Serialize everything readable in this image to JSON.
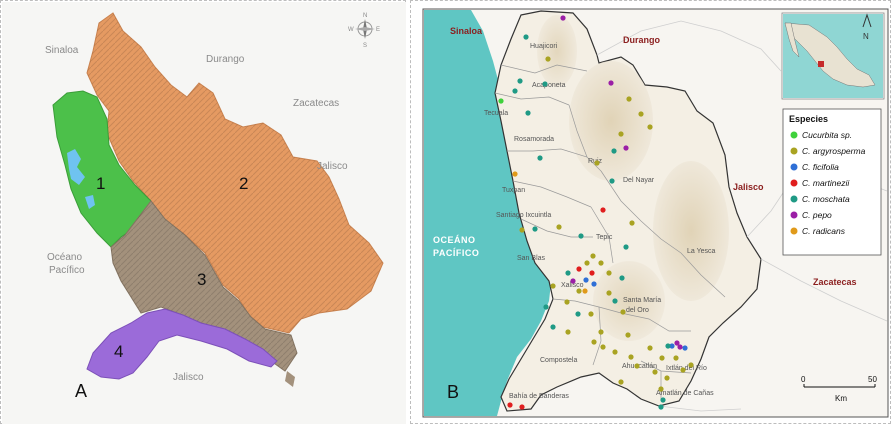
{
  "panelA": {
    "letter": "A",
    "labels": {
      "sinaloa": "Sinaloa",
      "durango": "Durango",
      "zacatecas": "Zacatecas",
      "jalisco_east": "Jalisco",
      "oceano_1": "Océano",
      "oceano_2": "Pacífico",
      "jalisco_south": "Jalisco"
    },
    "regions": [
      {
        "id": "1",
        "label": "1",
        "color": "#4cc04a"
      },
      {
        "id": "2",
        "label": "2",
        "color": "#e59a62"
      },
      {
        "id": "3",
        "label": "3",
        "color": "#a3917c"
      },
      {
        "id": "4",
        "label": "4",
        "color": "#9b6bd9"
      }
    ],
    "compass": {
      "n": "N",
      "s": "S",
      "e": "E",
      "w": "W"
    }
  },
  "panelB": {
    "letter": "B",
    "states": {
      "sinaloa": "Sinaloa",
      "durango": "Durango",
      "jalisco": "Jalisco",
      "zacatecas": "Zacatecas"
    },
    "ocean_1": "OCEÁNO",
    "ocean_2": "PACÍFICO",
    "municipalities": [
      {
        "id": "huajicori",
        "name": "Huajicori"
      },
      {
        "id": "acaponeta",
        "name": "Acaponeta"
      },
      {
        "id": "tecuala",
        "name": "Tecuala"
      },
      {
        "id": "rosamorada",
        "name": "Rosamorada"
      },
      {
        "id": "ruiz",
        "name": "Ruiz"
      },
      {
        "id": "delnayar",
        "name": "Del Nayar"
      },
      {
        "id": "tuxpan",
        "name": "Tuxpan"
      },
      {
        "id": "santiago",
        "name": "Santiago Ixcuintla"
      },
      {
        "id": "tepic",
        "name": "Tepic"
      },
      {
        "id": "sanblas",
        "name": "San Blas"
      },
      {
        "id": "xalisco",
        "name": "Xalisco"
      },
      {
        "id": "layesca",
        "name": "La Yesca"
      },
      {
        "id": "santamaria1",
        "name": "Santa María"
      },
      {
        "id": "santamaria2",
        "name": "del Oro"
      },
      {
        "id": "compostela",
        "name": "Compostela"
      },
      {
        "id": "ahuacatlan",
        "name": "Ahuacatlán"
      },
      {
        "id": "ixtlan",
        "name": "Ixtlán del Río"
      },
      {
        "id": "bahia",
        "name": "Bahía de Banderas"
      },
      {
        "id": "amatlan",
        "name": "Amatlán de Cañas"
      }
    ],
    "inset_north": "N",
    "legend": {
      "title": "Especies",
      "items": [
        {
          "name": "Cucurbita sp.",
          "color": "#3fd13b"
        },
        {
          "name": "C. argyrosperma",
          "color": "#a9a322"
        },
        {
          "name": "C. ficifolia",
          "color": "#2f6fd6"
        },
        {
          "name": "C. martinezii",
          "color": "#e01e1e"
        },
        {
          "name": "C. moschata",
          "color": "#1f9a85"
        },
        {
          "name": "C. pepo",
          "color": "#9b1fa6"
        },
        {
          "name": "C. radicans",
          "color": "#e09a1a"
        }
      ]
    },
    "scale": {
      "zero": "0",
      "max": "50",
      "unit": "Km"
    },
    "points": [
      {
        "s": 4,
        "x": 525,
        "y": 36
      },
      {
        "s": 5,
        "x": 562,
        "y": 17
      },
      {
        "s": 1,
        "x": 547,
        "y": 58
      },
      {
        "s": 4,
        "x": 519,
        "y": 80
      },
      {
        "s": 4,
        "x": 514,
        "y": 90
      },
      {
        "s": 4,
        "x": 544,
        "y": 83
      },
      {
        "s": 0,
        "x": 500,
        "y": 100
      },
      {
        "s": 4,
        "x": 527,
        "y": 112
      },
      {
        "s": 5,
        "x": 610,
        "y": 82
      },
      {
        "s": 1,
        "x": 628,
        "y": 98
      },
      {
        "s": 1,
        "x": 640,
        "y": 113
      },
      {
        "s": 1,
        "x": 649,
        "y": 126
      },
      {
        "s": 1,
        "x": 620,
        "y": 133
      },
      {
        "s": 4,
        "x": 613,
        "y": 150
      },
      {
        "s": 1,
        "x": 596,
        "y": 162
      },
      {
        "s": 5,
        "x": 625,
        "y": 147
      },
      {
        "s": 4,
        "x": 539,
        "y": 157
      },
      {
        "s": 6,
        "x": 514,
        "y": 173
      },
      {
        "s": 4,
        "x": 611,
        "y": 180
      },
      {
        "s": 3,
        "x": 602,
        "y": 209
      },
      {
        "s": 1,
        "x": 631,
        "y": 222
      },
      {
        "s": 1,
        "x": 558,
        "y": 226
      },
      {
        "s": 1,
        "x": 521,
        "y": 229
      },
      {
        "s": 4,
        "x": 534,
        "y": 228
      },
      {
        "s": 4,
        "x": 580,
        "y": 235
      },
      {
        "s": 4,
        "x": 625,
        "y": 246
      },
      {
        "s": 1,
        "x": 592,
        "y": 255
      },
      {
        "s": 1,
        "x": 600,
        "y": 262
      },
      {
        "s": 1,
        "x": 586,
        "y": 262
      },
      {
        "s": 1,
        "x": 608,
        "y": 272
      },
      {
        "s": 4,
        "x": 567,
        "y": 272
      },
      {
        "s": 3,
        "x": 578,
        "y": 268
      },
      {
        "s": 3,
        "x": 591,
        "y": 272
      },
      {
        "s": 5,
        "x": 572,
        "y": 280
      },
      {
        "s": 2,
        "x": 585,
        "y": 279
      },
      {
        "s": 2,
        "x": 593,
        "y": 283
      },
      {
        "s": 6,
        "x": 584,
        "y": 290
      },
      {
        "s": 1,
        "x": 578,
        "y": 290
      },
      {
        "s": 4,
        "x": 621,
        "y": 277
      },
      {
        "s": 1,
        "x": 552,
        "y": 285
      },
      {
        "s": 1,
        "x": 566,
        "y": 301
      },
      {
        "s": 1,
        "x": 608,
        "y": 292
      },
      {
        "s": 4,
        "x": 614,
        "y": 300
      },
      {
        "s": 1,
        "x": 622,
        "y": 311
      },
      {
        "s": 1,
        "x": 590,
        "y": 313
      },
      {
        "s": 4,
        "x": 577,
        "y": 313
      },
      {
        "s": 4,
        "x": 552,
        "y": 326
      },
      {
        "s": 1,
        "x": 567,
        "y": 331
      },
      {
        "s": 1,
        "x": 600,
        "y": 331
      },
      {
        "s": 1,
        "x": 627,
        "y": 334
      },
      {
        "s": 1,
        "x": 593,
        "y": 341
      },
      {
        "s": 1,
        "x": 602,
        "y": 346
      },
      {
        "s": 1,
        "x": 614,
        "y": 351
      },
      {
        "s": 1,
        "x": 630,
        "y": 356
      },
      {
        "s": 1,
        "x": 649,
        "y": 347
      },
      {
        "s": 1,
        "x": 661,
        "y": 357
      },
      {
        "s": 1,
        "x": 675,
        "y": 357
      },
      {
        "s": 2,
        "x": 671,
        "y": 345
      },
      {
        "s": 2,
        "x": 684,
        "y": 347
      },
      {
        "s": 5,
        "x": 676,
        "y": 342
      },
      {
        "s": 5,
        "x": 679,
        "y": 346
      },
      {
        "s": 4,
        "x": 667,
        "y": 345
      },
      {
        "s": 1,
        "x": 654,
        "y": 371
      },
      {
        "s": 1,
        "x": 666,
        "y": 377
      },
      {
        "s": 1,
        "x": 682,
        "y": 369
      },
      {
        "s": 1,
        "x": 690,
        "y": 364
      },
      {
        "s": 1,
        "x": 660,
        "y": 388
      },
      {
        "s": 4,
        "x": 662,
        "y": 399
      },
      {
        "s": 4,
        "x": 660,
        "y": 406
      },
      {
        "s": 1,
        "x": 620,
        "y": 381
      },
      {
        "s": 3,
        "x": 509,
        "y": 404
      },
      {
        "s": 3,
        "x": 521,
        "y": 406
      },
      {
        "s": 1,
        "x": 636,
        "y": 365
      },
      {
        "s": 4,
        "x": 545,
        "y": 306
      }
    ]
  }
}
